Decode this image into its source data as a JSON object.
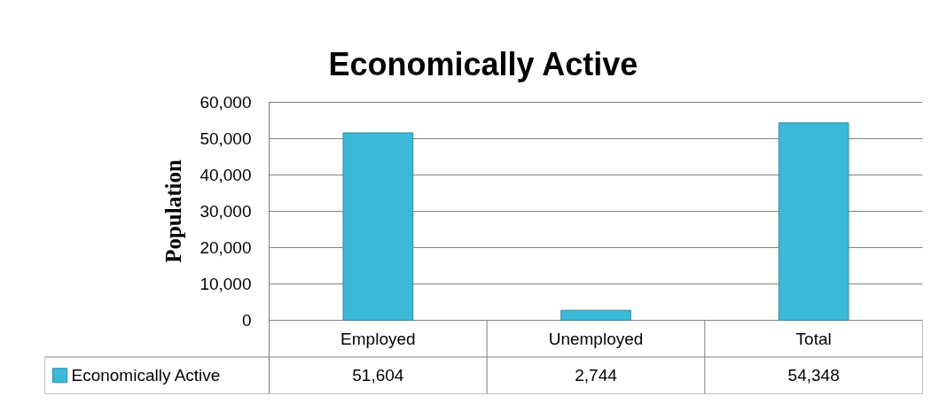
{
  "chart_data": {
    "type": "bar",
    "title": "Economically Active",
    "ylabel": "Population",
    "categories": [
      "Employed",
      "Unemployed",
      "Total"
    ],
    "series": [
      {
        "name": "Economically Active",
        "color": "#3cb9d9",
        "values": [
          51604,
          2744,
          54348
        ],
        "value_labels": [
          "51,604",
          "2,744",
          "54,348"
        ]
      }
    ],
    "ylim": [
      0,
      60000
    ],
    "yticks": [
      {
        "value": 0,
        "label": "0"
      },
      {
        "value": 10000,
        "label": "10,000"
      },
      {
        "value": 20000,
        "label": "20,000"
      },
      {
        "value": 30000,
        "label": "30,000"
      },
      {
        "value": 40000,
        "label": "40,000"
      },
      {
        "value": 50000,
        "label": "50,000"
      },
      {
        "value": 60000,
        "label": "60,000"
      }
    ],
    "grid": "y",
    "legend": "bottom"
  }
}
